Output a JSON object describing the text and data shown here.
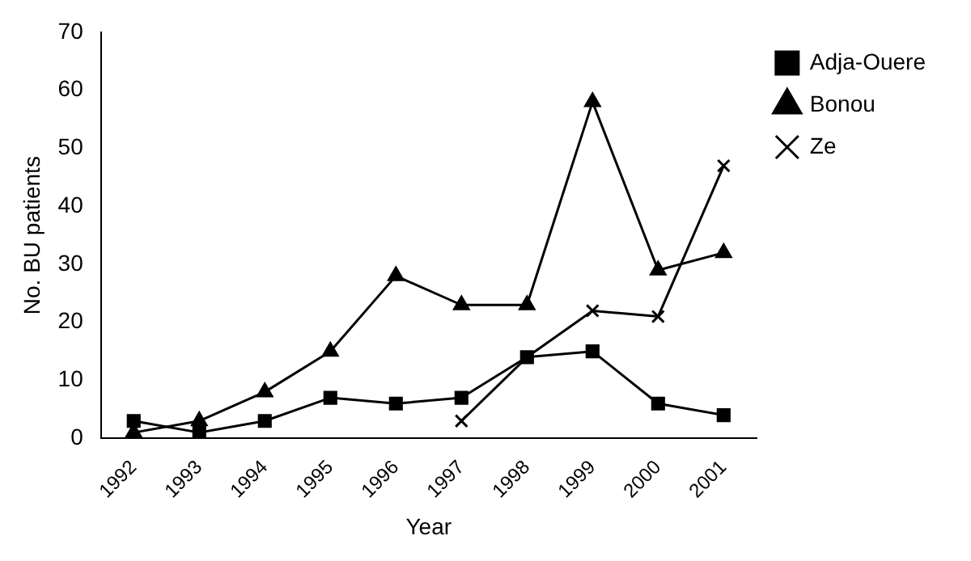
{
  "chart_data": {
    "type": "line",
    "xlabel": "Year",
    "ylabel": "No. BU patients",
    "categories": [
      "1992",
      "1993",
      "1994",
      "1995",
      "1996",
      "1997",
      "1998",
      "1999",
      "2000",
      "2001"
    ],
    "series": [
      {
        "name": "Adja-Ouere",
        "color": "#000000",
        "marker": "square",
        "values": [
          3,
          1,
          3,
          7,
          6,
          7,
          14,
          15,
          6,
          4
        ]
      },
      {
        "name": "Bonou",
        "color": "#000000",
        "marker": "triangle",
        "values": [
          1,
          3,
          8,
          15,
          28,
          23,
          23,
          58,
          29,
          32
        ]
      },
      {
        "name": "Ze",
        "color": "#000000",
        "marker": "cross",
        "values": [
          null,
          null,
          null,
          null,
          null,
          3,
          14,
          22,
          21,
          47
        ]
      }
    ],
    "ylim": [
      0,
      70
    ],
    "yticks": [
      0,
      10,
      20,
      30,
      40,
      50,
      60,
      70
    ],
    "grid": false,
    "legend": "top right"
  }
}
